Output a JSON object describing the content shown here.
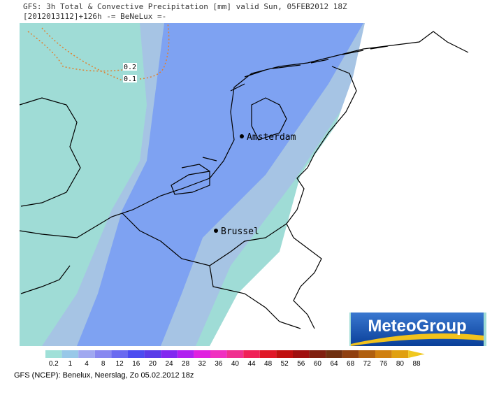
{
  "header": {
    "line1": "GFS: 3h Total & Convective Precipitation [mm] valid Sun, 05FEB2012 18Z",
    "line2": "[2012013112]+126h -= BeNeLux =-"
  },
  "contours": [
    "0.2",
    "0.1"
  ],
  "cities": [
    "Amsterdam",
    "Brussel"
  ],
  "logo": "MeteoGroup",
  "legend": {
    "labels": [
      0.2,
      1,
      4,
      8,
      12,
      16,
      20,
      24,
      28,
      32,
      36,
      40,
      44,
      48,
      52,
      56,
      60,
      64,
      68,
      72,
      76,
      80,
      88
    ],
    "colors": [
      "#a0e0d8",
      "#98c8e8",
      "#a0a8f0",
      "#8888f0",
      "#6a6af0",
      "#4c4cf0",
      "#5a3ce8",
      "#8228f0",
      "#b020f0",
      "#e020e0",
      "#f030c0",
      "#f03090",
      "#f02058",
      "#e01828",
      "#c01010",
      "#a01010",
      "#802010",
      "#703010",
      "#904010",
      "#b06010",
      "#d08010",
      "#e0a010",
      "#f0c820"
    ]
  },
  "footer": "GFS (NCEP): Benelux, Neerslag, Zo 05.02.2012 18z"
}
